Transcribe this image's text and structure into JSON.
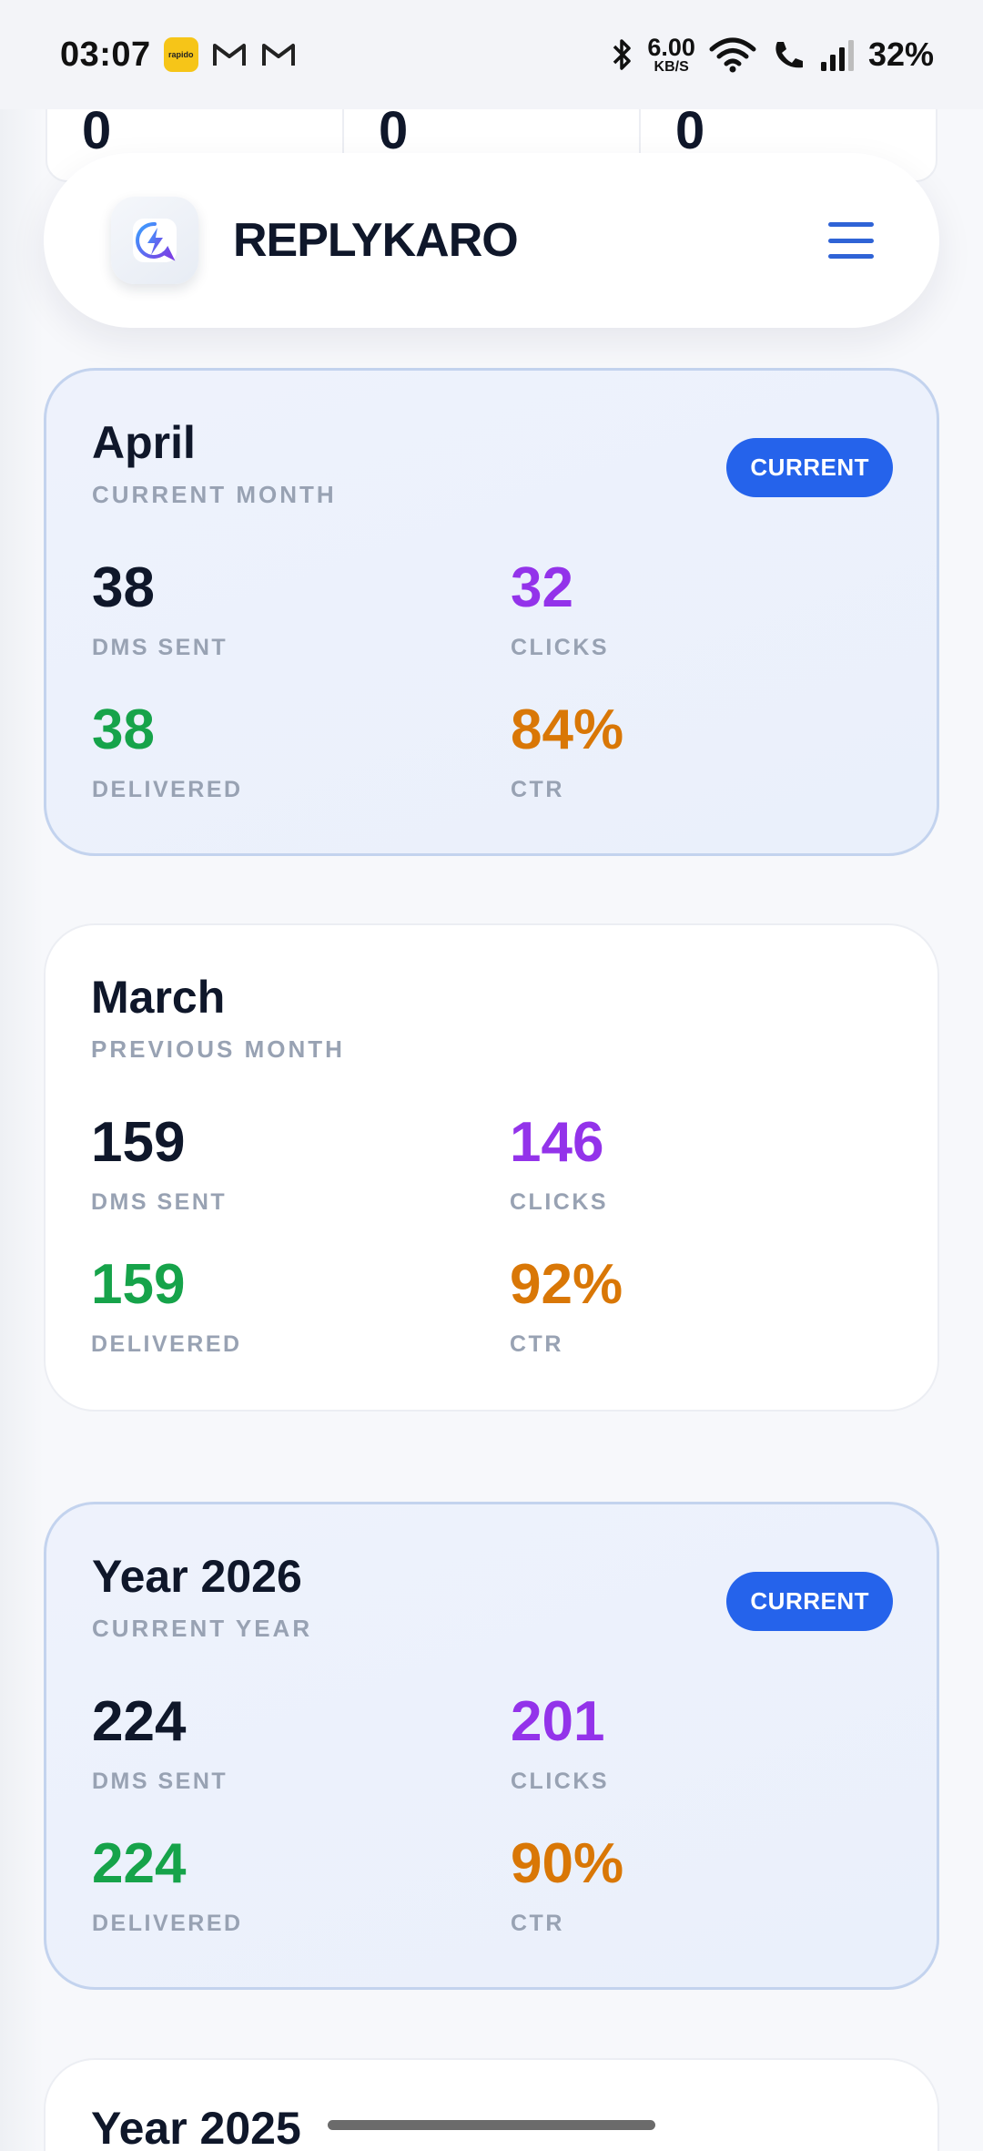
{
  "status_bar": {
    "time": "03:07",
    "app_icons": [
      "rapido-icon",
      "gmail-icon",
      "gmail-icon"
    ],
    "rapido_label": "rapido",
    "net_speed_value": "6.00",
    "net_speed_unit": "KB/S",
    "battery": "32%"
  },
  "top_strip": {
    "values": [
      "0",
      "0",
      "0"
    ]
  },
  "header": {
    "brand": "REPLYKARO"
  },
  "cards": {
    "april": {
      "title": "April",
      "subtitle": "CURRENT MONTH",
      "badge": "CURRENT",
      "dms_sent": "38",
      "dms_sent_label": "DMS SENT",
      "clicks": "32",
      "clicks_label": "CLICKS",
      "delivered": "38",
      "delivered_label": "DELIVERED",
      "ctr": "84%",
      "ctr_label": "CTR"
    },
    "march": {
      "title": "March",
      "subtitle": "PREVIOUS MONTH",
      "dms_sent": "159",
      "dms_sent_label": "DMS SENT",
      "clicks": "146",
      "clicks_label": "CLICKS",
      "delivered": "159",
      "delivered_label": "DELIVERED",
      "ctr": "92%",
      "ctr_label": "CTR"
    },
    "year2026": {
      "title": "Year 2026",
      "subtitle": "CURRENT YEAR",
      "badge": "CURRENT",
      "dms_sent": "224",
      "dms_sent_label": "DMS SENT",
      "clicks": "201",
      "clicks_label": "CLICKS",
      "delivered": "224",
      "delivered_label": "DELIVERED",
      "ctr": "90%",
      "ctr_label": "CTR"
    },
    "year2025": {
      "title": "Year 2025"
    }
  },
  "colors": {
    "accent": "#2563eb",
    "clicks": "#9333ea",
    "delivered": "#16a34a",
    "ctr": "#d97706"
  }
}
